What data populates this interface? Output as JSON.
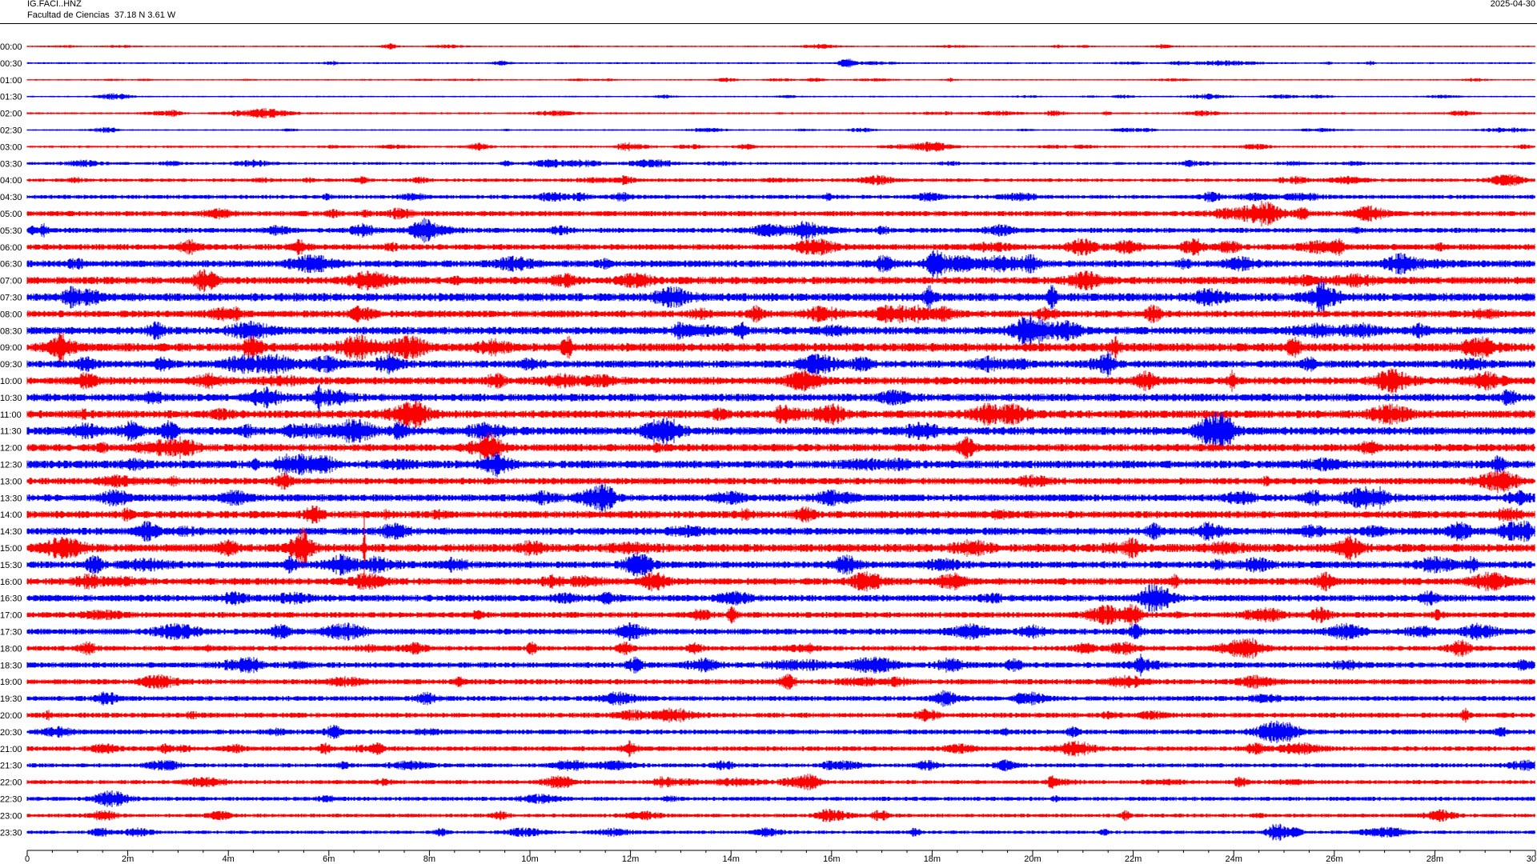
{
  "header": {
    "title": "IG.FACI..HNZ",
    "subtitle": "Facultad de Ciencias  37.18 N 3.61 W",
    "date": "2025-04-30"
  },
  "colors": {
    "even_rows": "#ff0000",
    "odd_rows": "#0000ff",
    "axis": "#000000"
  },
  "chart_data": {
    "type": "line",
    "title": "IG.FACI..HNZ",
    "subtitle": "Facultad de Ciencias  37.18 N 3.61 W",
    "xlabel": "",
    "ylabel": "",
    "xlim": [
      0,
      30
    ],
    "x_unit": "m",
    "x_tick_labels": [
      "0",
      "2m",
      "4m",
      "6m",
      "8m",
      "10m",
      "12m",
      "14m",
      "16m",
      "18m",
      "20m",
      "22m",
      "24m",
      "26m",
      "28m",
      "30"
    ],
    "x_tick_values": [
      0,
      2,
      4,
      6,
      8,
      10,
      12,
      14,
      16,
      18,
      20,
      22,
      24,
      26,
      28,
      30
    ],
    "x_minor_step": 0.5,
    "row_labels": [
      "00:00",
      "00:30",
      "01:00",
      "01:30",
      "02:00",
      "02:30",
      "03:00",
      "03:30",
      "04:00",
      "04:30",
      "05:00",
      "05:30",
      "06:00",
      "06:30",
      "07:00",
      "07:30",
      "08:00",
      "08:30",
      "09:00",
      "09:30",
      "10:00",
      "10:30",
      "11:00",
      "11:30",
      "12:00",
      "12:30",
      "13:00",
      "13:30",
      "14:00",
      "14:30",
      "15:00",
      "15:30",
      "16:00",
      "16:30",
      "17:00",
      "17:30",
      "18:00",
      "18:30",
      "19:00",
      "19:30",
      "20:00",
      "20:30",
      "21:00",
      "21:30",
      "22:00",
      "22:30",
      "23:00",
      "23:30"
    ],
    "row_amplitude": [
      1.0,
      1.2,
      0.9,
      1.0,
      1.3,
      1.0,
      1.5,
      1.8,
      2.2,
      2.6,
      3.4,
      3.2,
      3.8,
      4.4,
      4.6,
      5.2,
      4.4,
      4.8,
      5.4,
      4.6,
      4.8,
      4.8,
      5.0,
      5.0,
      4.8,
      5.0,
      4.2,
      4.4,
      4.6,
      4.6,
      5.2,
      4.4,
      4.4,
      4.2,
      3.6,
      3.8,
      3.2,
      3.6,
      3.4,
      3.2,
      3.2,
      3.2,
      3.0,
      2.6,
      2.6,
      2.6,
      2.4,
      2.2
    ],
    "events": [
      {
        "row": "00:00",
        "minute": 7.2,
        "amp": 3
      },
      {
        "row": "00:30",
        "minute": 16.3,
        "amp": 4
      },
      {
        "row": "02:00",
        "minute": 2.9,
        "amp": 3
      },
      {
        "row": "03:00",
        "minute": 9.0,
        "amp": 3
      },
      {
        "row": "03:00",
        "minute": 11.9,
        "amp": 3
      },
      {
        "row": "04:00",
        "minute": 11.9,
        "amp": 4
      },
      {
        "row": "07:30",
        "minute": 0.9,
        "amp": 9
      },
      {
        "row": "08:00",
        "minute": 14.5,
        "amp": 7
      },
      {
        "row": "08:00",
        "minute": 20.3,
        "amp": 6
      },
      {
        "row": "09:30",
        "minute": 16.6,
        "amp": 7
      },
      {
        "row": "10:00",
        "minute": 9.3,
        "amp": 7
      },
      {
        "row": "11:30",
        "minute": 7.4,
        "amp": 8
      },
      {
        "row": "12:00",
        "minute": 9.2,
        "amp": 7
      },
      {
        "row": "13:00",
        "minute": 5.1,
        "amp": 7
      },
      {
        "row": "14:00",
        "minute": 5.7,
        "amp": 8
      },
      {
        "row": "14:30",
        "minute": 29.8,
        "amp": 9
      },
      {
        "row": "15:00",
        "minute": 6.7,
        "amp": 40
      },
      {
        "row": "15:00",
        "minute": 4.0,
        "amp": 8
      },
      {
        "row": "17:00",
        "minute": 13.4,
        "amp": 6
      },
      {
        "row": "17:00",
        "minute": 22.0,
        "amp": 10
      },
      {
        "row": "18:00",
        "minute": 1.2,
        "amp": 6
      },
      {
        "row": "20:30",
        "minute": 6.1,
        "amp": 6
      },
      {
        "row": "21:00",
        "minute": 12.0,
        "amp": 5
      },
      {
        "row": "23:00",
        "minute": 9.4,
        "amp": 4
      },
      {
        "row": "23:30",
        "minute": 25.2,
        "amp": 4
      }
    ],
    "grid": false,
    "legend": "none"
  }
}
